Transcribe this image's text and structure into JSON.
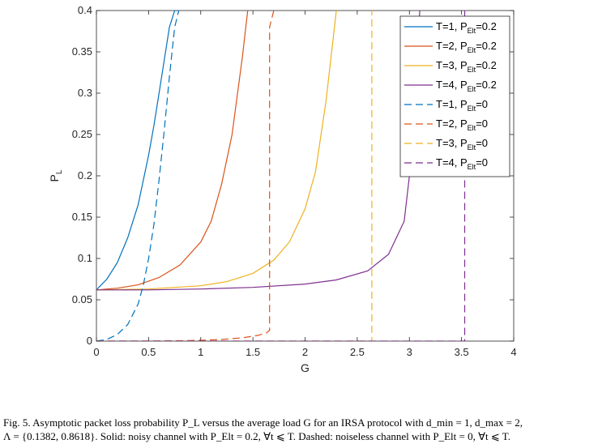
{
  "chart_data": {
    "type": "line",
    "xlabel": "G",
    "ylabel_main": "P",
    "ylabel_sub": "L",
    "xlim": [
      0,
      4
    ],
    "ylim": [
      0,
      0.4
    ],
    "xticks": [
      0,
      0.5,
      1,
      1.5,
      2,
      2.5,
      3,
      3.5,
      4
    ],
    "xtick_labels": [
      "0",
      "0.5",
      "1",
      "1.5",
      "2",
      "2.5",
      "3",
      "3.5",
      "4"
    ],
    "yticks": [
      0,
      0.05,
      0.1,
      0.15,
      0.2,
      0.25,
      0.3,
      0.35,
      0.4
    ],
    "ytick_labels": [
      "0",
      "0.05",
      "0.1",
      "0.15",
      "0.2",
      "0.25",
      "0.3",
      "0.35",
      "0.4"
    ],
    "grid": false,
    "legend_position": "top-right",
    "series": [
      {
        "name": "T=1, P",
        "name_sub": "Elt",
        "name_tail": "=0.2",
        "color": "#0072BD",
        "dash": "solid",
        "x": [
          0,
          0.1,
          0.2,
          0.3,
          0.4,
          0.5,
          0.55,
          0.6,
          0.65,
          0.7,
          0.75,
          0.78
        ],
        "y": [
          0.062,
          0.075,
          0.095,
          0.125,
          0.165,
          0.225,
          0.26,
          0.3,
          0.34,
          0.38,
          0.4,
          0.4
        ]
      },
      {
        "name": "T=2, P",
        "name_sub": "Elt",
        "name_tail": "=0.2",
        "color": "#D95319",
        "dash": "solid",
        "x": [
          0,
          0.2,
          0.4,
          0.6,
          0.8,
          1.0,
          1.1,
          1.2,
          1.3,
          1.4,
          1.45
        ],
        "y": [
          0.062,
          0.064,
          0.068,
          0.077,
          0.092,
          0.12,
          0.145,
          0.19,
          0.25,
          0.345,
          0.4
        ]
      },
      {
        "name": "T=3, P",
        "name_sub": "Elt",
        "name_tail": "=0.2",
        "color": "#EDB120",
        "dash": "solid",
        "x": [
          0,
          0.5,
          1.0,
          1.25,
          1.5,
          1.7,
          1.85,
          2.0,
          2.1,
          2.2,
          2.3
        ],
        "y": [
          0.062,
          0.063,
          0.067,
          0.072,
          0.082,
          0.098,
          0.12,
          0.16,
          0.205,
          0.29,
          0.4
        ]
      },
      {
        "name": "T=4, P",
        "name_sub": "Elt",
        "name_tail": "=0.2",
        "color": "#7E2F8E",
        "dash": "solid",
        "x": [
          0,
          0.5,
          1.0,
          1.5,
          2.0,
          2.3,
          2.6,
          2.8,
          2.95,
          3.0,
          3.05,
          3.1
        ],
        "y": [
          0.062,
          0.062,
          0.063,
          0.065,
          0.069,
          0.074,
          0.085,
          0.105,
          0.145,
          0.2,
          0.3,
          0.4
        ]
      },
      {
        "name": "T=1, P",
        "name_sub": "Elt",
        "name_tail": "=0",
        "color": "#0072BD",
        "dash": "dashed",
        "x": [
          0,
          0.1,
          0.2,
          0.3,
          0.4,
          0.45,
          0.5,
          0.55,
          0.6,
          0.65,
          0.7,
          0.75,
          0.79
        ],
        "y": [
          0.0,
          0.002,
          0.008,
          0.02,
          0.045,
          0.068,
          0.1,
          0.14,
          0.195,
          0.255,
          0.32,
          0.38,
          0.4
        ]
      },
      {
        "name": "T=2, P",
        "name_sub": "Elt",
        "name_tail": "=0",
        "color": "#D95319",
        "dash": "dashed",
        "x": [
          0,
          0.4,
          0.8,
          1.0,
          1.2,
          1.4,
          1.55,
          1.63,
          1.66,
          1.66,
          1.7
        ],
        "y": [
          0.0,
          0.0,
          0.0005,
          0.001,
          0.002,
          0.004,
          0.007,
          0.01,
          0.013,
          0.38,
          0.4
        ]
      },
      {
        "name": "T=3, P",
        "name_sub": "Elt",
        "name_tail": "=0",
        "color": "#EDB120",
        "dash": "dashed",
        "x": [
          0,
          1.0,
          2.0,
          2.6,
          2.64,
          2.64
        ],
        "y": [
          0.0,
          0.0,
          0.0,
          0.0,
          0.0,
          0.4
        ]
      },
      {
        "name": "T=4, P",
        "name_sub": "Elt",
        "name_tail": "=0",
        "color": "#7E2F8E",
        "dash": "dashed",
        "x": [
          0,
          1.0,
          2.0,
          3.0,
          3.5,
          3.53,
          3.53
        ],
        "y": [
          0.0,
          0.0,
          0.0,
          0.0,
          0.0,
          0.0,
          0.4
        ]
      }
    ]
  },
  "caption": {
    "line1": "Fig. 5.   Asymptotic packet loss probability P_L versus the average load G for an IRSA protocol with d_min = 1, d_max = 2,",
    "line2": "Λ = {0.1382, 0.8618}. Solid: noisy channel with P_Elt = 0.2, ∀t ⩽ T. Dashed: noiseless channel with P_Elt = 0, ∀t ⩽ T."
  }
}
